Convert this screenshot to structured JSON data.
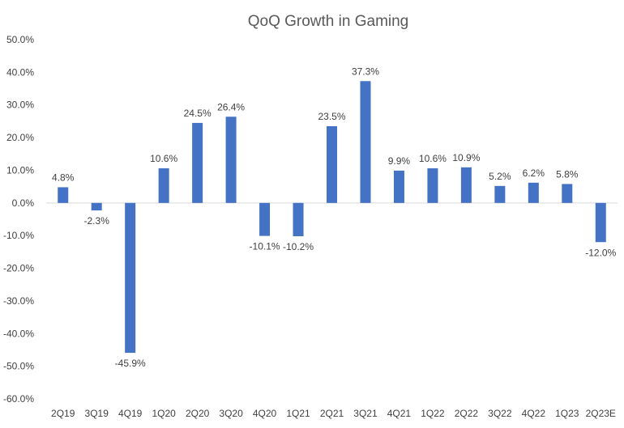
{
  "chart_data": {
    "type": "bar",
    "title": "QoQ Growth in Gaming",
    "xlabel": "",
    "ylabel": "",
    "ylim": [
      -60,
      50
    ],
    "ytick_step": 10,
    "ytick_labels": [
      "50.0%",
      "40.0%",
      "30.0%",
      "20.0%",
      "10.0%",
      "0.0%",
      "-10.0%",
      "-20.0%",
      "-30.0%",
      "-40.0%",
      "-50.0%",
      "-60.0%"
    ],
    "grid": false,
    "legend": "none",
    "bar_color": "#4472C4",
    "categories": [
      "2Q19",
      "3Q19",
      "4Q19",
      "1Q20",
      "2Q20",
      "3Q20",
      "4Q20",
      "1Q21",
      "2Q21",
      "3Q21",
      "4Q21",
      "1Q22",
      "2Q22",
      "3Q22",
      "4Q22",
      "1Q23",
      "2Q23E"
    ],
    "values": [
      4.8,
      -2.3,
      -45.9,
      10.6,
      24.5,
      26.4,
      -10.1,
      -10.2,
      23.5,
      37.3,
      9.9,
      10.6,
      10.9,
      5.2,
      6.2,
      5.8,
      -12.0
    ],
    "data_labels": [
      "4.8%",
      "-2.3%",
      "-45.9%",
      "10.6%",
      "24.5%",
      "26.4%",
      "-10.1%",
      "-10.2%",
      "23.5%",
      "37.3%",
      "9.9%",
      "10.6%",
      "10.9%",
      "5.2%",
      "6.2%",
      "5.8%",
      "-12.0%"
    ]
  }
}
